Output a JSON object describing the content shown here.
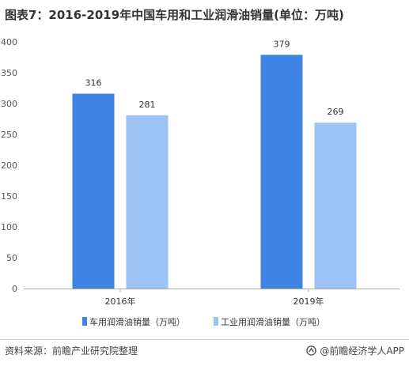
{
  "title": "图表7：2016-2019年中国车用和工业润滑油销量(单位：万吨)",
  "source": "资料来源：前瞻产业研究院整理",
  "credit": "@前瞻经济学人APP",
  "chart_data": {
    "type": "bar",
    "categories": [
      "2016年",
      "2019年"
    ],
    "series": [
      {
        "name": "车用润滑油销量（万吨）",
        "values": [
          316,
          379
        ],
        "color": "#3f84e5"
      },
      {
        "name": "工业用润滑油销量（万吨）",
        "values": [
          281,
          269
        ],
        "color": "#9dc3f5"
      }
    ],
    "ylim": [
      0,
      400
    ],
    "yticks": [
      0,
      50,
      100,
      150,
      200,
      250,
      300,
      350,
      400
    ],
    "grid": false,
    "legend": "bottom",
    "data_labels": true
  }
}
